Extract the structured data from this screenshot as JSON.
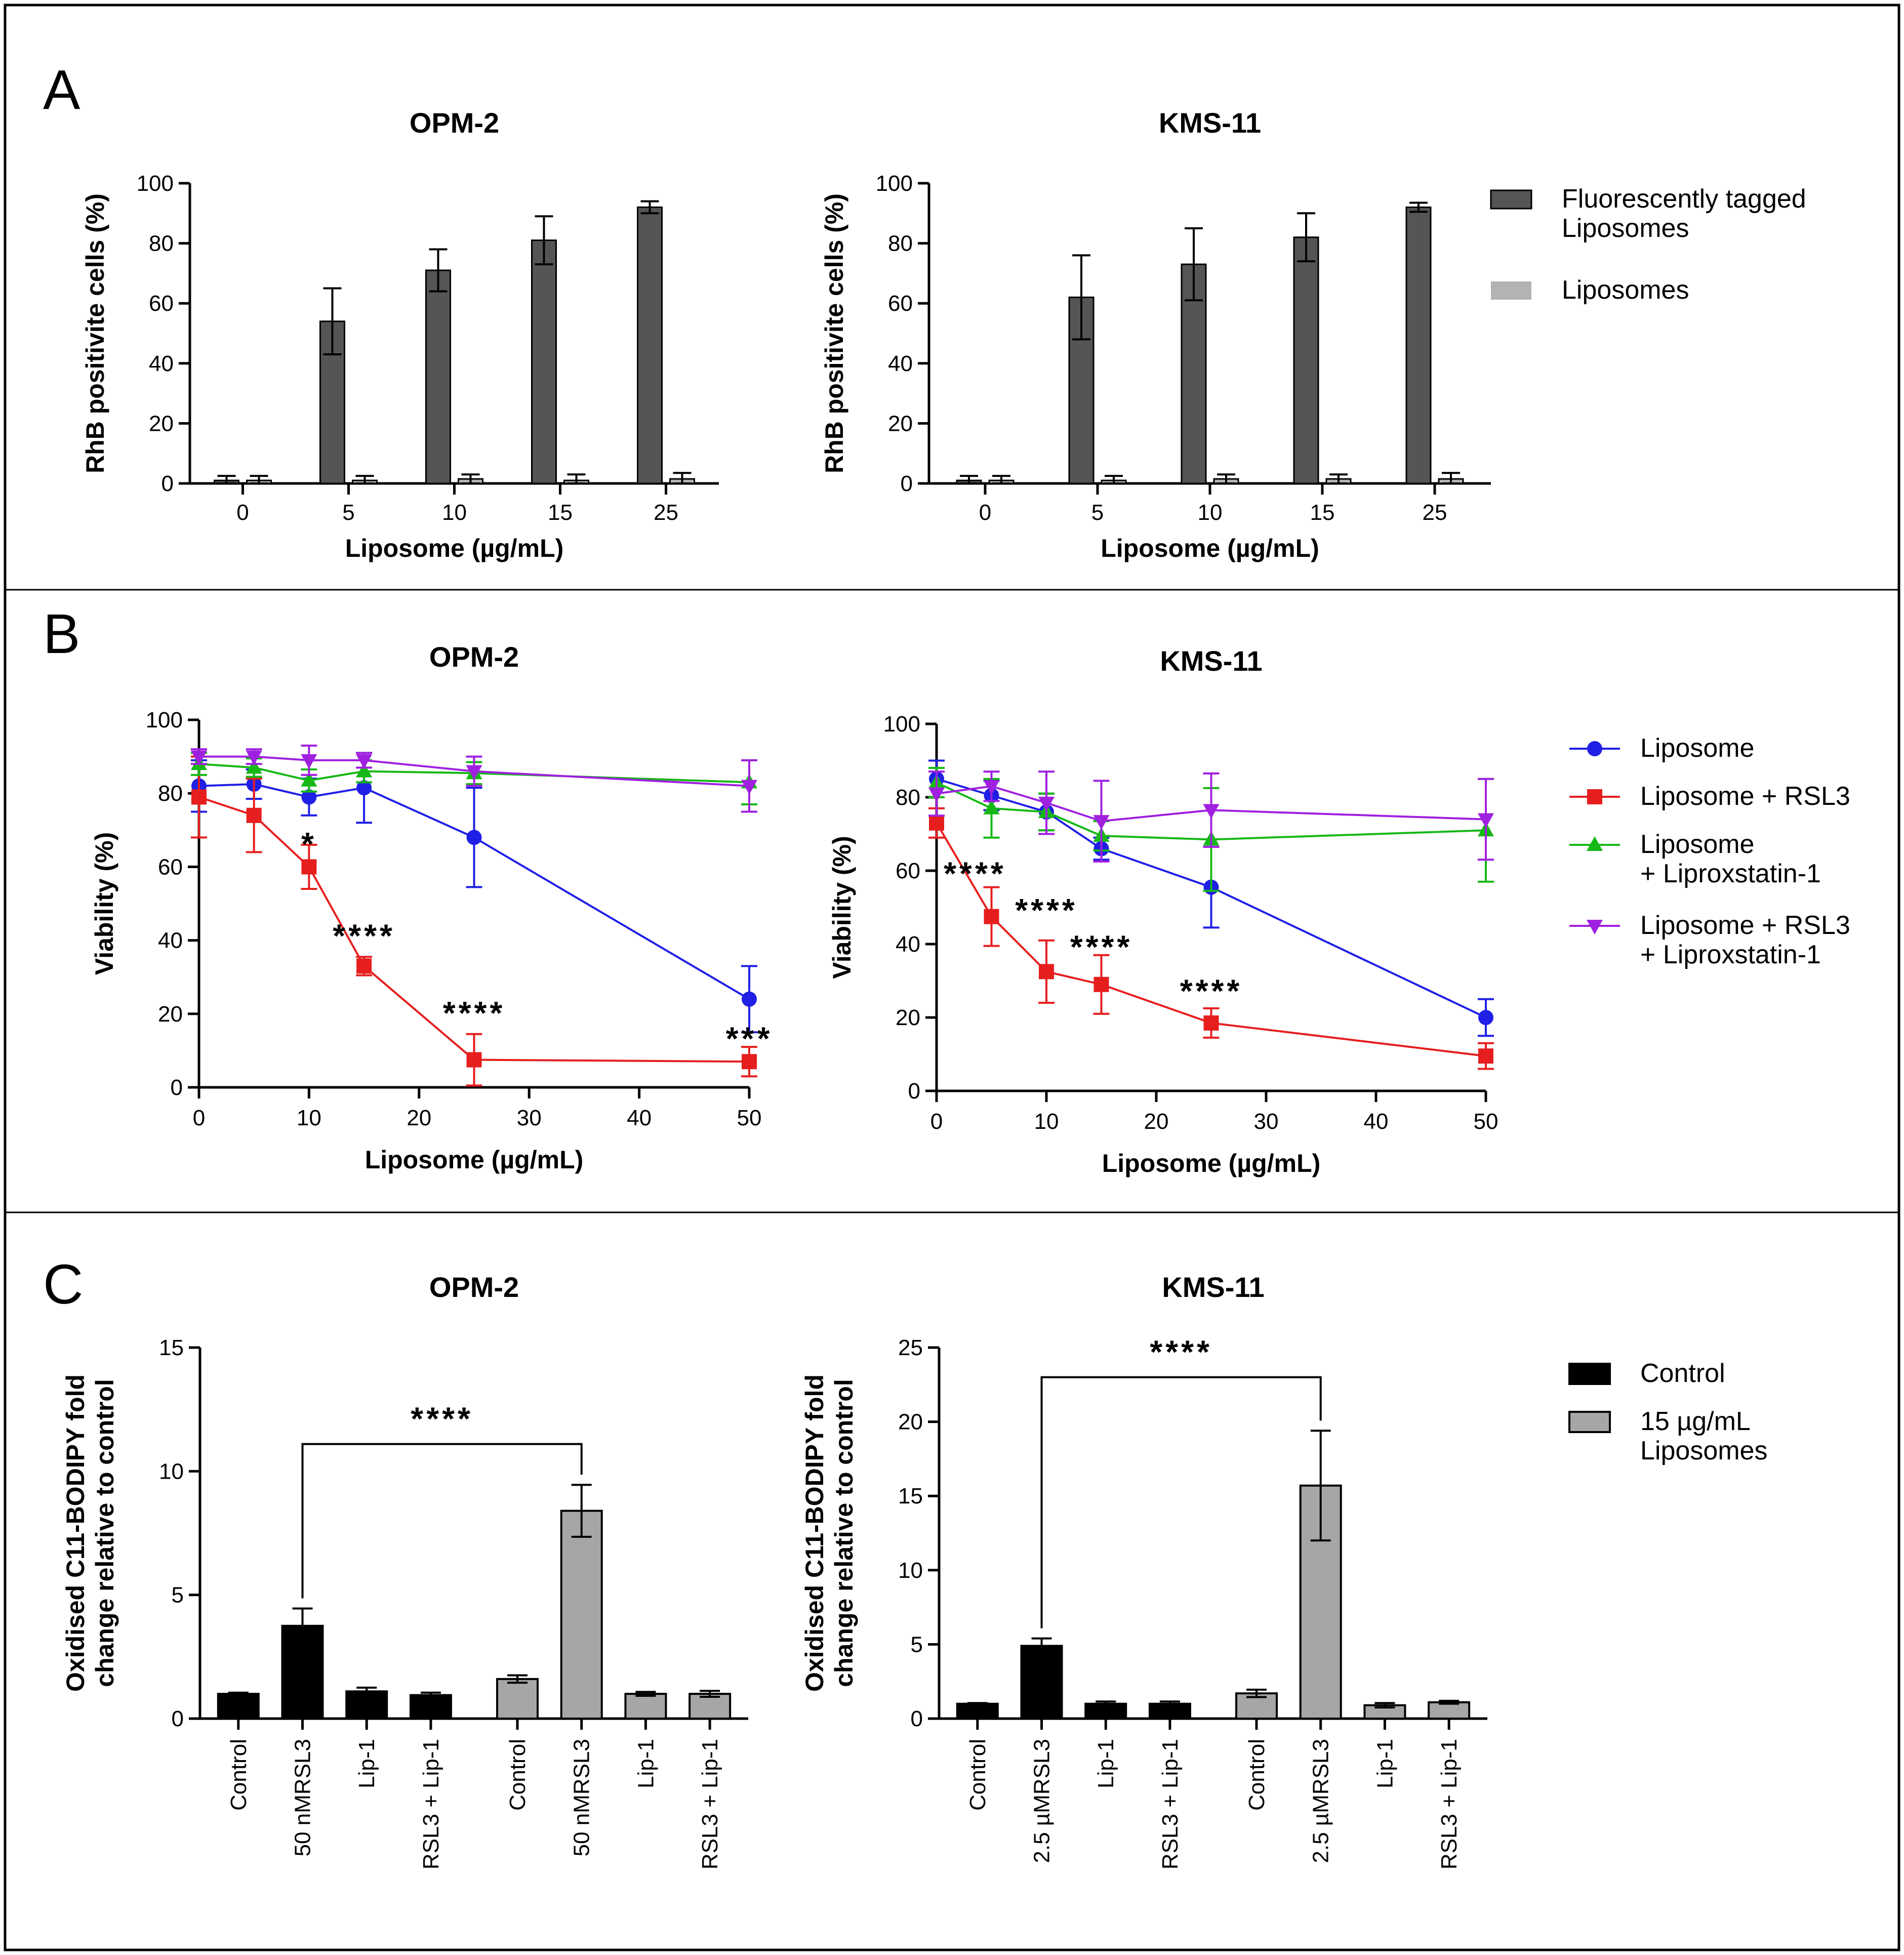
{
  "chart_data": [
    {
      "id": "A-OPM2",
      "type": "bar",
      "panel_label": "A",
      "title": "OPM-2",
      "xlabel": "Liposome (µg/mL)",
      "ylabel": "RhB positivite cells (%)",
      "ylim": [
        0,
        100
      ],
      "yticks": [
        "0",
        "20",
        "40",
        "60",
        "80",
        "100"
      ],
      "categories": [
        "0",
        "5",
        "10",
        "15",
        "25"
      ],
      "series": [
        {
          "name": "Fluorescently tagged Liposomes",
          "color": "#555555",
          "values": [
            1,
            54,
            71,
            81,
            92
          ],
          "errors": [
            1.5,
            11,
            7,
            8,
            2
          ]
        },
        {
          "name": "Liposomes",
          "color": "#b3b3b3",
          "values": [
            1,
            1,
            1.5,
            1,
            1.5
          ],
          "errors": [
            1.5,
            1.5,
            1.5,
            2,
            2
          ]
        }
      ]
    },
    {
      "id": "A-KMS11",
      "type": "bar",
      "title": "KMS-11",
      "xlabel": "Liposome (µg/mL)",
      "ylabel": "RhB positivite cells (%)",
      "ylim": [
        0,
        100
      ],
      "yticks": [
        "0",
        "20",
        "40",
        "60",
        "80",
        "100"
      ],
      "categories": [
        "0",
        "5",
        "10",
        "15",
        "25"
      ],
      "series": [
        {
          "name": "Fluorescently tagged Liposomes",
          "color": "#555555",
          "values": [
            1,
            62,
            73,
            82,
            92
          ],
          "errors": [
            1.5,
            14,
            12,
            8,
            1.5
          ]
        },
        {
          "name": "Liposomes",
          "color": "#b3b3b3",
          "values": [
            1,
            1,
            1.5,
            1.5,
            1.5
          ],
          "errors": [
            1.5,
            1.5,
            1.5,
            1.5,
            2
          ]
        }
      ],
      "legend": {
        "placement": "right",
        "entries": [
          "Fluorescently tagged Liposomes",
          "Liposomes"
        ],
        "lines": [
          [
            "Fluorescently tagged",
            "Liposomes"
          ],
          [
            "Liposomes"
          ]
        ]
      }
    },
    {
      "id": "B-OPM2",
      "type": "line",
      "panel_label": "B",
      "title": "OPM-2",
      "xlabel": "Liposome (µg/mL)",
      "ylabel": "Viability (%)",
      "xlim": [
        0,
        50
      ],
      "ylim": [
        0,
        100
      ],
      "xticks": [
        "0",
        "10",
        "20",
        "30",
        "40",
        "50"
      ],
      "yticks": [
        "0",
        "20",
        "40",
        "60",
        "80",
        "100"
      ],
      "x": [
        0,
        5,
        10,
        15,
        25,
        50
      ],
      "series": [
        {
          "name": "Liposome",
          "color": "#1f1fe6",
          "marker": "circle",
          "values": [
            82,
            82.5,
            79,
            81.5,
            68,
            24
          ],
          "errors": [
            7,
            4,
            5,
            9.5,
            13.5,
            9
          ]
        },
        {
          "name": "Liposome + RSL3",
          "color": "#e61e1e",
          "marker": "square",
          "values": [
            79,
            74,
            60,
            33,
            7.5,
            7
          ],
          "errors": [
            11,
            10,
            6,
            2.5,
            7,
            4
          ]
        },
        {
          "name": "Liposome + Liproxstatin-1",
          "color": "#16b816",
          "marker": "triangle-up",
          "values": [
            88,
            87,
            83.5,
            86,
            85.5,
            83
          ],
          "errors": [
            3,
            2.5,
            3,
            3,
            3,
            6
          ]
        },
        {
          "name": "Liposome + RSL3 + Liproxstatin-1",
          "color": "#a020e0",
          "marker": "triangle-down",
          "values": [
            90,
            90,
            89,
            89,
            86,
            82
          ],
          "errors": [
            2,
            2,
            4,
            2,
            4,
            7
          ]
        }
      ],
      "annotations": [
        {
          "text": "*",
          "x": 10,
          "y": 66
        },
        {
          "text": "****",
          "x": 15,
          "y": 41
        },
        {
          "text": "****",
          "x": 25,
          "y": 20
        },
        {
          "text": "***",
          "x": 50,
          "y": 13
        }
      ]
    },
    {
      "id": "B-KMS11",
      "type": "line",
      "title": "KMS-11",
      "xlabel": "Liposome (µg/mL)",
      "ylabel": "Viability (%)",
      "xlim": [
        0,
        50
      ],
      "ylim": [
        0,
        100
      ],
      "xticks": [
        "0",
        "10",
        "20",
        "30",
        "40",
        "50"
      ],
      "yticks": [
        "0",
        "20",
        "40",
        "60",
        "80",
        "100"
      ],
      "x": [
        0,
        5,
        10,
        15,
        25,
        50
      ],
      "series": [
        {
          "name": "Liposome",
          "color": "#1f1fe6",
          "marker": "circle",
          "values": [
            85,
            80.5,
            76,
            66,
            55.5,
            20
          ],
          "errors": [
            5,
            4,
            5,
            3,
            11,
            5
          ]
        },
        {
          "name": "Liposome + RSL3",
          "color": "#e61e1e",
          "marker": "square",
          "values": [
            73,
            47.5,
            32.5,
            29,
            18.5,
            9.5
          ],
          "errors": [
            4,
            8,
            8.5,
            8,
            4,
            3.5
          ]
        },
        {
          "name": "Liposome + Liproxstatin-1",
          "color": "#16b816",
          "marker": "triangle-up",
          "values": [
            84,
            77,
            76,
            69.5,
            68.5,
            71
          ],
          "errors": [
            4,
            8,
            5,
            4,
            14,
            14
          ]
        },
        {
          "name": "Liposome + RSL3 + Liproxstatin-1",
          "color": "#a020e0",
          "marker": "triangle-down",
          "values": [
            81,
            83,
            78.5,
            73.5,
            76.5,
            74
          ],
          "errors": [
            6,
            4,
            8.5,
            11,
            10,
            11
          ]
        }
      ],
      "annotations": [
        {
          "text": "****",
          "x": 3.5,
          "y": 59
        },
        {
          "text": "****",
          "x": 10,
          "y": 49
        },
        {
          "text": "****",
          "x": 15,
          "y": 39
        },
        {
          "text": "****",
          "x": 25,
          "y": 27
        }
      ],
      "legend": {
        "placement": "right",
        "entries": [
          "Liposome",
          "Liposome + RSL3",
          "Liposome + Liproxstatin-1",
          "Liposome + RSL3 + Liproxstatin-1"
        ],
        "lines": [
          [
            "Liposome"
          ],
          [
            "Liposome + RSL3"
          ],
          [
            "Liposome",
            "+ Liproxstatin-1"
          ],
          [
            "Liposome + RSL3",
            "+ Liproxstatin-1"
          ]
        ]
      }
    },
    {
      "id": "C-OPM2",
      "type": "bar",
      "panel_label": "C",
      "title": "OPM-2",
      "ylabel": "Oxidised C11-BODIPY fold change relative to control",
      "ylabel_lines": [
        "Oxidised C11-BODIPY fold",
        "change relative to control"
      ],
      "ylim": [
        0,
        15
      ],
      "yticks": [
        "0",
        "5",
        "10",
        "15"
      ],
      "categories": [
        "Control",
        "50 nMRSL3",
        "Lip-1",
        "RSL3 + Lip-1",
        "Control",
        "50 nMRSL3",
        "Lip-1",
        "RSL3 + Lip-1"
      ],
      "values": [
        1,
        3.75,
        1.1,
        0.95,
        1.6,
        8.4,
        1.0,
        1.0
      ],
      "errors": [
        0.05,
        0.7,
        0.15,
        0.1,
        0.15,
        1.05,
        0.08,
        0.12
      ],
      "groups": [
        "Control",
        "Control",
        "Control",
        "Control",
        "15 µg/mL Liposomes",
        "15 µg/mL Liposomes",
        "15 µg/mL Liposomes",
        "15 µg/mL Liposomes"
      ],
      "group_colors": {
        "Control": "#000000",
        "15 µg/mL Liposomes": "#a6a6a6"
      },
      "bracket": {
        "from": 1,
        "to": 5,
        "y": 11.1,
        "label": "****"
      }
    },
    {
      "id": "C-KMS11",
      "type": "bar",
      "title": "KMS-11",
      "ylabel": "Oxidised C11-BODIPY fold change relative to control",
      "ylabel_lines": [
        "Oxidised C11-BODIPY fold",
        "change relative to control"
      ],
      "ylim": [
        0,
        25
      ],
      "yticks": [
        "0",
        "5",
        "10",
        "15",
        "20",
        "25"
      ],
      "categories": [
        "Control",
        "2.5 µMRSL3",
        "Lip-1",
        "RSL3 + Lip-1",
        "Control",
        "2.5 µMRSL3",
        "Lip-1",
        "RSL3 + Lip-1"
      ],
      "values": [
        1,
        4.9,
        1.0,
        1.0,
        1.7,
        15.7,
        0.9,
        1.1
      ],
      "errors": [
        0.05,
        0.5,
        0.15,
        0.15,
        0.25,
        3.7,
        0.15,
        0.1
      ],
      "groups": [
        "Control",
        "Control",
        "Control",
        "Control",
        "15 µg/mL Liposomes",
        "15 µg/mL Liposomes",
        "15 µg/mL Liposomes",
        "15 µg/mL Liposomes"
      ],
      "group_colors": {
        "Control": "#000000",
        "15 µg/mL Liposomes": "#a6a6a6"
      },
      "bracket": {
        "from": 1,
        "to": 5,
        "y": 23,
        "label": "****"
      },
      "legend": {
        "placement": "right",
        "entries": [
          "Control",
          "15 µg/mL Liposomes"
        ],
        "lines": [
          [
            "Control"
          ],
          [
            "15 µg/mL",
            "Liposomes"
          ]
        ]
      }
    }
  ]
}
